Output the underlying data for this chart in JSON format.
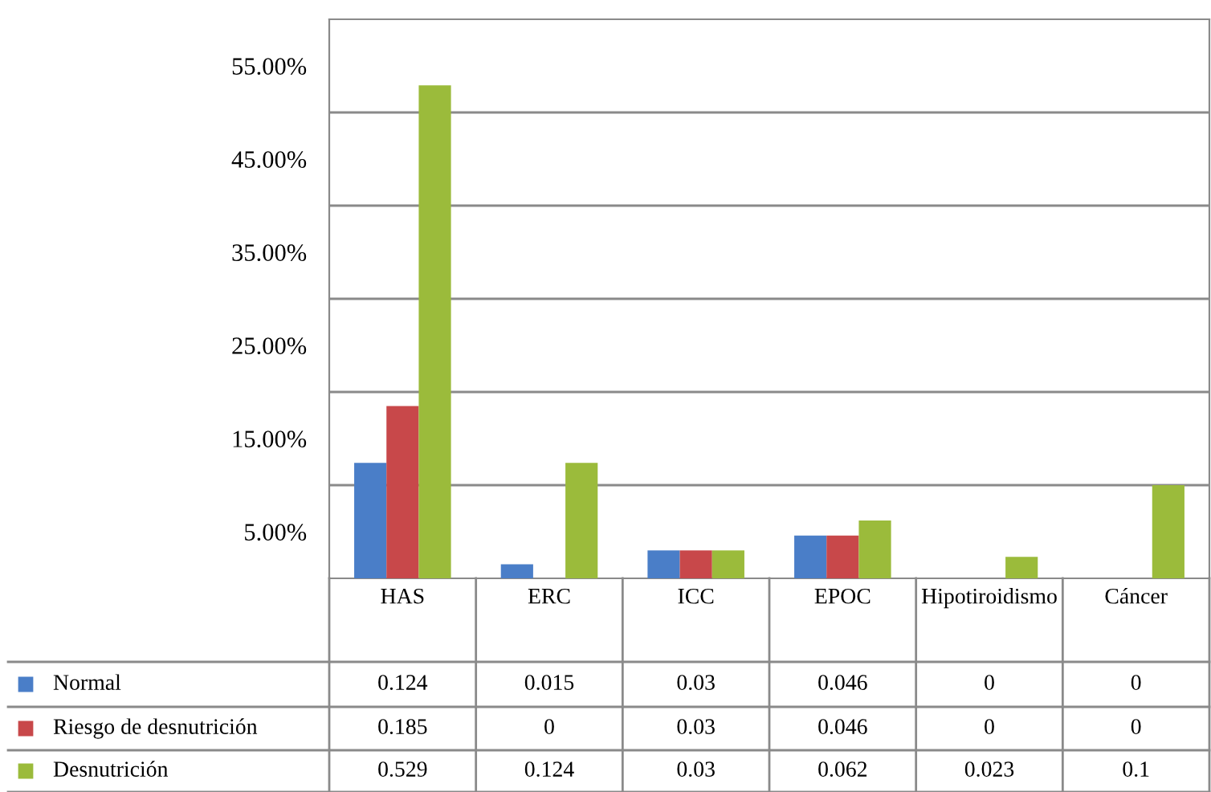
{
  "chart_data": {
    "type": "bar",
    "categories": [
      "HAS",
      "ERC",
      "ICC",
      "EPOC",
      "Hipotiroidismo",
      "Cáncer"
    ],
    "series": [
      {
        "name": "Normal",
        "color": "#4a7ec8",
        "values": [
          0.124,
          0.015,
          0.03,
          0.046,
          0,
          0
        ]
      },
      {
        "name": "Riesgo de desnutrición",
        "color": "#c8484a",
        "values": [
          0.185,
          0,
          0.03,
          0.046,
          0,
          0
        ]
      },
      {
        "name": "Desnutrición",
        "color": "#9bbb3b",
        "values": [
          0.529,
          0.124,
          0.03,
          0.062,
          0.023,
          0.1
        ]
      }
    ],
    "ylim": [
      0,
      0.6
    ],
    "yticks": [
      {
        "value": 0.05,
        "label": "5.00%"
      },
      {
        "value": 0.15,
        "label": "15.00%"
      },
      {
        "value": 0.25,
        "label": "25.00%"
      },
      {
        "value": 0.35,
        "label": "35.00%"
      },
      {
        "value": 0.45,
        "label": "45.00%"
      },
      {
        "value": 0.55,
        "label": "55.00%"
      },
      {
        "value": 0.1,
        "label": null
      },
      {
        "value": 0.2,
        "label": null
      },
      {
        "value": 0.3,
        "label": null
      },
      {
        "value": 0.4,
        "label": null
      },
      {
        "value": 0.5,
        "label": null
      }
    ],
    "grid": "y",
    "data_labels": true,
    "legend": "bottom left"
  }
}
